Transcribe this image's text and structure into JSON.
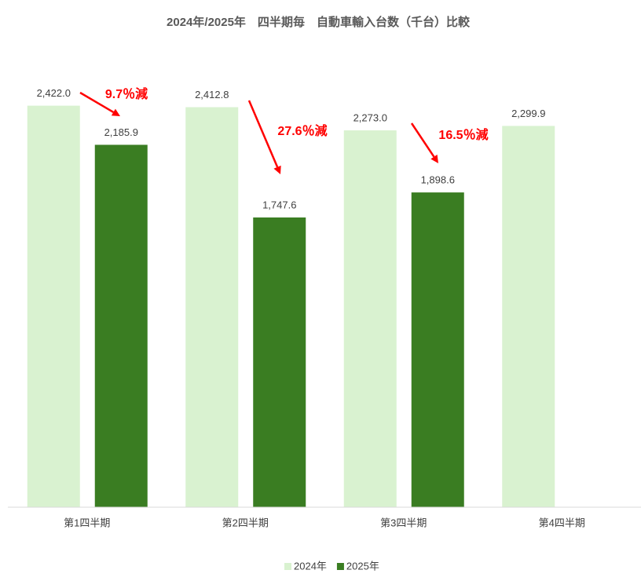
{
  "chart_data": {
    "type": "bar",
    "title": "2024年/2025年　四半期毎　自動車輸入台数（千台）比較",
    "categories": [
      "第1四半期",
      "第2四半期",
      "第3四半期",
      "第4四半期"
    ],
    "series": [
      {
        "name": "2024年",
        "color": "#d9f2d0",
        "values": [
          2422.0,
          2412.8,
          2273.0,
          2299.9
        ],
        "value_labels": [
          "2,422.0",
          "2,412.8",
          "2,273.0",
          "2,299.9"
        ]
      },
      {
        "name": "2025年",
        "color": "#3a7d22",
        "values": [
          2185.9,
          1747.6,
          1898.6,
          null
        ],
        "value_labels": [
          "2,185.9",
          "1,747.6",
          "1,898.6",
          null
        ]
      }
    ],
    "ylim": [
      0,
      2600
    ],
    "annotations": [
      "9.7％減",
      "27.6％減",
      "16.5％減"
    ],
    "annotation_color": "#ff0000",
    "legend": "bottom"
  }
}
